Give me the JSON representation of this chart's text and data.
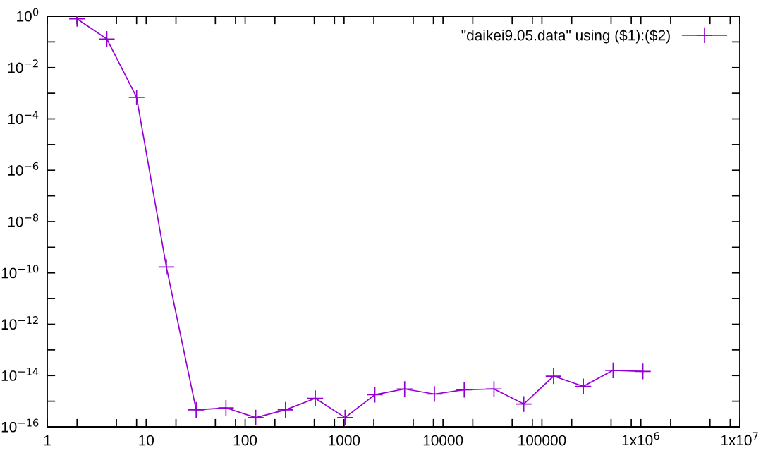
{
  "chart_data": {
    "type": "line",
    "log": "xy",
    "marker": "cross",
    "line_style": "solid",
    "grid": false,
    "legend": "top right",
    "x": [
      2,
      4,
      8,
      16,
      32,
      64,
      128,
      256,
      512,
      1024,
      2048,
      4096,
      8192,
      16384,
      32768,
      65536,
      131072,
      262144,
      524288,
      1048576
    ],
    "series": [
      {
        "name": "\"daikei9.05.data\" using ($1):($2)",
        "color": "#9400d3",
        "values": [
          0.79,
          0.13,
          0.00069,
          1.7e-10,
          4.6e-16,
          5.5e-16,
          2.3e-16,
          4.6e-16,
          1.3e-15,
          2.3e-16,
          1.8e-15,
          3e-15,
          1.9e-15,
          2.8e-15,
          3e-15,
          7.8e-16,
          9.5e-15,
          3.8e-15,
          1.6e-14,
          1.45e-14
        ]
      }
    ],
    "xlim": [
      1,
      10000000
    ],
    "ylim": [
      1e-16,
      1
    ],
    "xticks": [
      1,
      {
        "value": 2,
        "label": null
      },
      {
        "value": 5,
        "label": null
      },
      {
        "value": 8,
        "label": null
      },
      10,
      {
        "value": 20,
        "label": null
      },
      {
        "value": 50,
        "label": null
      },
      {
        "value": 80,
        "label": null
      },
      100,
      {
        "value": 200,
        "label": null
      },
      {
        "value": 500,
        "label": null
      },
      {
        "value": 800,
        "label": null
      },
      1000,
      {
        "value": 2000,
        "label": null
      },
      {
        "value": 5000,
        "label": null
      },
      {
        "value": 8000,
        "label": null
      },
      10000,
      {
        "value": 20000,
        "label": null
      },
      {
        "value": 50000,
        "label": null
      },
      {
        "value": 80000,
        "label": null
      },
      100000,
      {
        "value": 200000,
        "label": null
      },
      {
        "value": 500000,
        "label": null
      },
      {
        "value": 800000,
        "label": null
      },
      {
        "value": 1000000,
        "label": "1x10$^{6}$"
      },
      {
        "value": 2000000,
        "label": null
      },
      {
        "value": 5000000,
        "label": null
      },
      {
        "value": 8000000,
        "label": null
      },
      {
        "value": 10000000,
        "label": "1x10$^{7}$"
      }
    ],
    "yticks": [
      {
        "value": 1e-16,
        "label": "10$^{−16}$"
      },
      {
        "value": 1e-15,
        "label": null
      },
      {
        "value": 1e-14,
        "label": "10$^{−14}$"
      },
      {
        "value": 1e-13,
        "label": null
      },
      {
        "value": 1e-12,
        "label": "10$^{−12}$"
      },
      {
        "value": 1e-11,
        "label": null
      },
      {
        "value": 1e-10,
        "label": "10$^{−10}$"
      },
      {
        "value": 1e-09,
        "label": null
      },
      {
        "value": 1e-08,
        "label": "10$^{−8}$"
      },
      {
        "value": 1e-07,
        "label": null
      },
      {
        "value": 1e-06,
        "label": "10$^{−6}$"
      },
      {
        "value": 1e-05,
        "label": null
      },
      {
        "value": 0.0001,
        "label": "10$^{−4}$"
      },
      {
        "value": 0.001,
        "label": null
      },
      {
        "value": 0.01,
        "label": "10$^{−2}$"
      },
      {
        "value": 0.1,
        "label": null
      },
      {
        "value": 1,
        "label": "10$^{0}$"
      }
    ]
  }
}
